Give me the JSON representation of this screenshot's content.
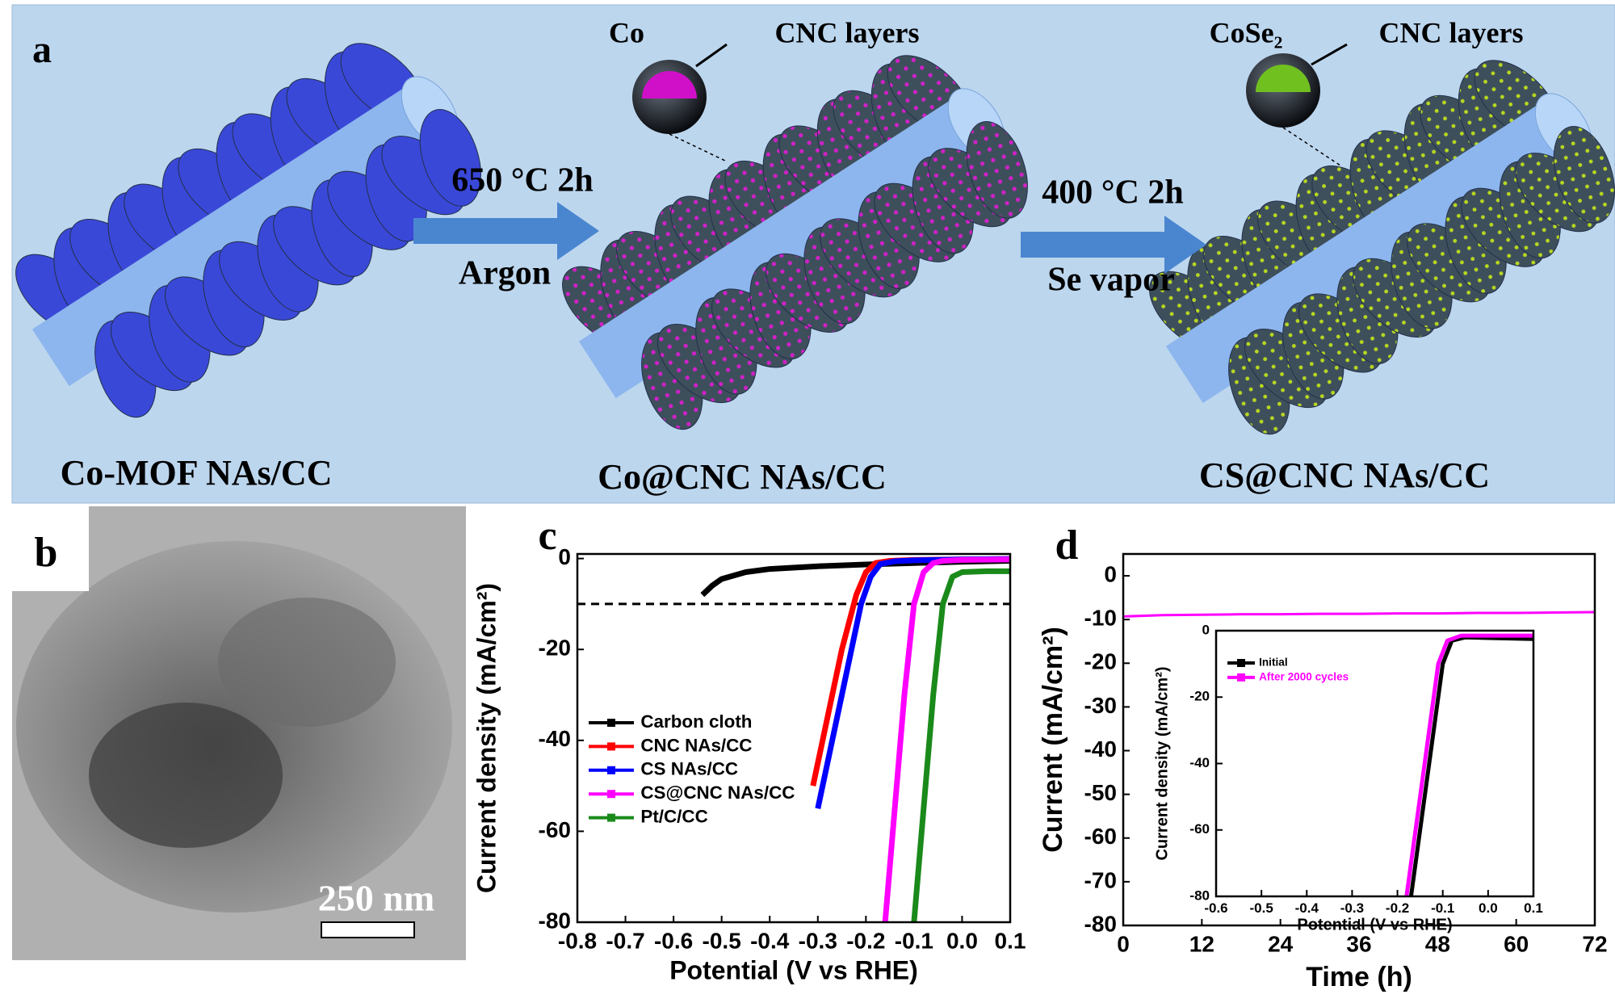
{
  "panel_a": {
    "label": "a",
    "stages": [
      "Co-MOF NAs/CC",
      "Co@CNC NAs/CC",
      "CS@CNC NAs/CC"
    ],
    "steps": [
      {
        "condition": "650 °C 2h",
        "atmosphere": "Argon"
      },
      {
        "condition": "400 °C 2h",
        "atmosphere": "Se vapor"
      }
    ],
    "callouts": [
      {
        "core": "Co",
        "shell": "CNC layers"
      },
      {
        "core": "CoSe₂",
        "shell": "CNC layers"
      }
    ]
  },
  "panel_b": {
    "label": "b",
    "scale_bar": "250 nm"
  },
  "chart_data": [
    {
      "type": "line",
      "label": "c",
      "x_label": "Potential (V vs RHE)",
      "y_label": "Current density (mA/cm²)",
      "xlim": [
        -0.8,
        0.1
      ],
      "xticks": [
        -0.8,
        -0.7,
        -0.6,
        -0.5,
        -0.4,
        -0.3,
        -0.2,
        -0.1,
        {
          "value": 0,
          "label": "0.0"
        },
        0.1
      ],
      "ylim": [
        -80,
        1
      ],
      "yticks": [
        0,
        -20,
        -40,
        -60,
        -80
      ],
      "hline": -10,
      "legend": "lower left",
      "series": [
        {
          "name": "Carbon cloth",
          "color": "#000000",
          "x": [
            -0.54,
            -0.52,
            -0.5,
            -0.45,
            -0.4,
            -0.3,
            -0.2,
            -0.1,
            0,
            0.1
          ],
          "values": [
            -8,
            -6,
            -4.5,
            -3,
            -2.3,
            -1.7,
            -1.3,
            -1,
            -0.7,
            -0.5
          ]
        },
        {
          "name": "CNC NAs/CC",
          "color": "#ff0000",
          "x": [
            -0.31,
            -0.28,
            -0.25,
            -0.22,
            -0.2,
            -0.18,
            -0.15,
            -0.1,
            0,
            0.1
          ],
          "values": [
            -50,
            -35,
            -20,
            -8,
            -3,
            -1,
            -0.5,
            -0.3,
            -0.2,
            -0.1
          ]
        },
        {
          "name": "CS NAs/CC",
          "color": "#0000ff",
          "x": [
            -0.3,
            -0.27,
            -0.24,
            -0.21,
            -0.19,
            -0.17,
            -0.14,
            -0.1,
            0,
            0.1
          ],
          "values": [
            -55,
            -40,
            -25,
            -10,
            -4,
            -1.2,
            -0.6,
            -0.4,
            -0.2,
            -0.1
          ]
        },
        {
          "name": "CS@CNC NAs/CC",
          "color": "#ff00ff",
          "x": [
            -0.16,
            -0.14,
            -0.12,
            -0.1,
            -0.08,
            -0.06,
            -0.04,
            0,
            0.1
          ],
          "values": [
            -80,
            -55,
            -30,
            -10,
            -3,
            -1,
            -0.5,
            -0.3,
            -0.2
          ]
        },
        {
          "name": "Pt/C/CC",
          "color": "#1a8a1a",
          "x": [
            -0.1,
            -0.08,
            -0.06,
            -0.04,
            -0.02,
            0,
            0.05,
            0.1
          ],
          "values": [
            -80,
            -55,
            -30,
            -10,
            -4,
            -3,
            -2.8,
            -2.8
          ]
        }
      ]
    },
    {
      "type": "line",
      "label": "d",
      "x_label": "Time (h)",
      "y_label": "Current (mA/cm²)",
      "xlim": [
        0,
        72
      ],
      "xticks": [
        0,
        12,
        24,
        36,
        48,
        60,
        72
      ],
      "ylim": [
        -80,
        5
      ],
      "yticks": [
        0,
        -10,
        -20,
        -30,
        -40,
        -50,
        -60,
        -70,
        -80
      ],
      "color": "#ff00ff",
      "x": [
        0,
        6,
        12,
        18,
        24,
        30,
        36,
        42,
        48,
        54,
        60,
        66,
        72
      ],
      "values": [
        -9.3,
        -9,
        -8.9,
        -8.8,
        -8.8,
        -8.7,
        -8.7,
        -8.6,
        -8.6,
        -8.5,
        -8.5,
        -8.4,
        -8.3
      ]
    },
    {
      "type": "line",
      "x_label": "Potential (V vs RHE)",
      "y_label": "Current density (mA/cm²)",
      "xlim": [
        -0.6,
        0.1
      ],
      "xticks": [
        -0.6,
        -0.5,
        -0.4,
        -0.3,
        -0.2,
        -0.1,
        {
          "value": 0,
          "label": "0.0"
        },
        0.1
      ],
      "ylim": [
        -80,
        0
      ],
      "yticks": [
        0,
        -20,
        -40,
        -60,
        -80
      ],
      "legend": "upper left",
      "series": [
        {
          "name": "Initial",
          "color": "#000000",
          "x": [
            -0.17,
            -0.15,
            -0.12,
            -0.1,
            -0.08,
            -0.05,
            0,
            0.1
          ],
          "values": [
            -80,
            -60,
            -30,
            -10,
            -3,
            -2,
            -2.2,
            -2.5
          ]
        },
        {
          "name": "After 2000 cycles",
          "color": "#ff00ff",
          "x": [
            -0.18,
            -0.16,
            -0.13,
            -0.11,
            -0.09,
            -0.06,
            0,
            0.1
          ],
          "values": [
            -80,
            -60,
            -30,
            -10,
            -3,
            -1.5,
            -1.5,
            -1.5
          ]
        }
      ]
    }
  ]
}
